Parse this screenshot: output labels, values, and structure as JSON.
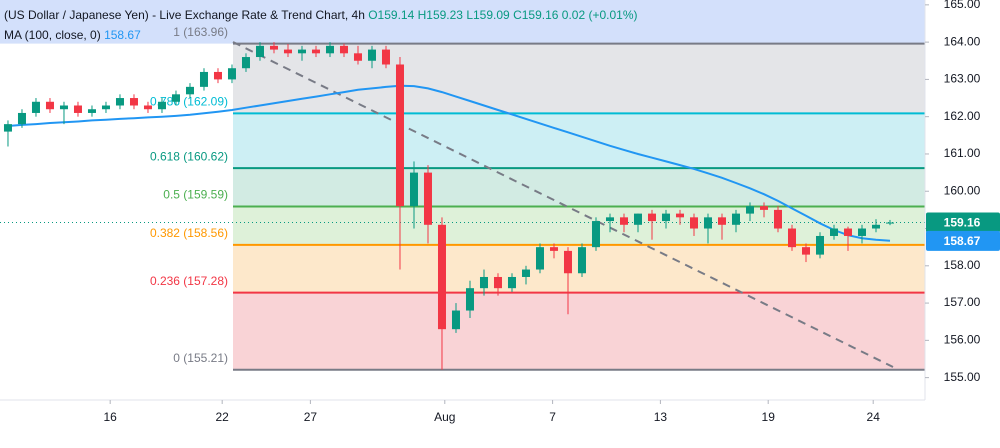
{
  "chart_data": {
    "type": "candlestick",
    "title": "(US Dollar / Japanese Yen) - Live Exchange Rate & Trend Chart, 4h",
    "ohlc_labels": [
      "O159.14",
      "H159.23",
      "L159.09",
      "C159.16"
    ],
    "change": "0.02 (+0.01%)",
    "up_color": "#089981",
    "down_color": "#f23645",
    "x": [
      0,
      1,
      2,
      3,
      4,
      5,
      6,
      7,
      8,
      9,
      10,
      11,
      12,
      13,
      14,
      15,
      16,
      17,
      18,
      19,
      20,
      21,
      22,
      23,
      24,
      25,
      26,
      27,
      28,
      29,
      30,
      31,
      32,
      33,
      34,
      35,
      36,
      37,
      38,
      39,
      40,
      41,
      42,
      43,
      44,
      45,
      46,
      47,
      48,
      49,
      50,
      51,
      52,
      53,
      54,
      55,
      56,
      57,
      58,
      59,
      60,
      61,
      62,
      63
    ],
    "open": [
      161.6,
      161.8,
      162.1,
      162.4,
      162.2,
      162.3,
      162.1,
      162.2,
      162.3,
      162.5,
      162.3,
      162.2,
      162.4,
      162.6,
      162.8,
      163.2,
      163.0,
      163.3,
      163.6,
      163.9,
      163.8,
      163.7,
      163.8,
      163.7,
      163.9,
      163.7,
      163.5,
      163.8,
      163.4,
      159.6,
      160.5,
      159.1,
      156.3,
      156.8,
      157.4,
      157.7,
      157.4,
      157.7,
      157.9,
      158.5,
      158.4,
      157.8,
      158.5,
      159.2,
      159.3,
      159.1,
      159.4,
      159.2,
      159.4,
      159.3,
      159.0,
      159.3,
      159.1,
      159.4,
      159.6,
      159.5,
      159.0,
      158.5,
      158.3,
      158.8,
      159.0,
      158.8,
      159.0,
      159.14
    ],
    "high": [
      161.9,
      162.2,
      162.5,
      162.5,
      162.4,
      162.4,
      162.3,
      162.4,
      162.6,
      162.6,
      162.4,
      162.5,
      162.7,
      162.9,
      163.3,
      163.3,
      163.4,
      163.7,
      164.0,
      164.0,
      163.95,
      163.9,
      163.9,
      164.0,
      163.96,
      163.9,
      163.9,
      163.9,
      163.6,
      160.8,
      160.7,
      159.3,
      157.0,
      157.6,
      157.9,
      157.8,
      157.8,
      158.0,
      158.6,
      158.6,
      158.5,
      158.6,
      159.3,
      159.4,
      159.4,
      159.4,
      159.5,
      159.5,
      159.5,
      159.4,
      159.4,
      159.4,
      159.5,
      159.7,
      159.7,
      159.6,
      159.1,
      158.6,
      158.9,
      159.1,
      159.05,
      159.1,
      159.25,
      159.23
    ],
    "low": [
      161.2,
      161.7,
      162.0,
      162.1,
      161.8,
      162.0,
      162.0,
      162.1,
      162.2,
      162.2,
      162.1,
      162.1,
      162.3,
      162.5,
      162.7,
      162.9,
      162.9,
      163.2,
      163.5,
      163.7,
      163.6,
      163.5,
      163.6,
      163.6,
      163.6,
      163.4,
      163.3,
      163.3,
      157.9,
      159.0,
      158.6,
      155.21,
      156.2,
      156.6,
      157.2,
      157.2,
      157.3,
      157.5,
      157.8,
      158.2,
      156.7,
      157.7,
      158.4,
      158.9,
      158.9,
      158.9,
      158.7,
      159.0,
      159.1,
      158.8,
      158.6,
      158.7,
      158.9,
      159.2,
      159.3,
      158.9,
      158.4,
      158.1,
      158.2,
      158.7,
      158.4,
      158.6,
      158.9,
      159.09
    ],
    "close": [
      161.8,
      162.1,
      162.4,
      162.2,
      162.3,
      162.1,
      162.2,
      162.3,
      162.5,
      162.3,
      162.2,
      162.4,
      162.6,
      162.8,
      163.2,
      163.0,
      163.3,
      163.6,
      163.9,
      163.8,
      163.7,
      163.8,
      163.7,
      163.9,
      163.7,
      163.5,
      163.8,
      163.4,
      159.6,
      160.5,
      159.1,
      156.3,
      156.8,
      157.4,
      157.7,
      157.4,
      157.7,
      157.9,
      158.5,
      158.4,
      157.8,
      158.5,
      159.2,
      159.3,
      159.1,
      159.4,
      159.2,
      159.4,
      159.3,
      159.0,
      159.3,
      159.1,
      159.4,
      159.6,
      159.5,
      159.0,
      158.5,
      158.3,
      158.8,
      159.0,
      158.8,
      159.0,
      159.1,
      159.16
    ],
    "ma": {
      "name": "MA (100, close, 0)",
      "color": "#2196f3",
      "values": [
        161.75,
        161.78,
        161.8,
        161.83,
        161.85,
        161.87,
        161.9,
        161.92,
        161.94,
        161.96,
        161.98,
        162.0,
        162.02,
        162.05,
        162.09,
        162.13,
        162.18,
        162.24,
        162.3,
        162.36,
        162.42,
        162.48,
        162.54,
        162.6,
        162.66,
        162.72,
        162.76,
        162.8,
        162.83,
        162.82,
        162.76,
        162.66,
        162.54,
        162.42,
        162.3,
        162.18,
        162.06,
        161.94,
        161.82,
        161.7,
        161.58,
        161.46,
        161.34,
        161.22,
        161.11,
        161.0,
        160.9,
        160.8,
        160.7,
        160.6,
        160.48,
        160.36,
        160.22,
        160.08,
        159.92,
        159.74,
        159.54,
        159.34,
        159.14,
        158.96,
        158.82,
        158.74,
        158.7,
        158.67
      ]
    },
    "fib": {
      "top_fill": "#d3e0fb",
      "levels": [
        {
          "label": "1 (163.96)",
          "price": 163.96,
          "color": "#787b86",
          "fill": "#e4e5e8"
        },
        {
          "label": "0.786 (162.09)",
          "price": 162.09,
          "color": "#00bcd4",
          "fill": "#cdeff4"
        },
        {
          "label": "0.618 (160.62)",
          "price": 160.62,
          "color": "#089981",
          "fill": "#d2ebe3"
        },
        {
          "label": "0.5 (159.59)",
          "price": 159.59,
          "color": "#4caf50",
          "fill": "#def1d9"
        },
        {
          "label": "0.382 (158.56)",
          "price": 158.56,
          "color": "#ff9800",
          "fill": "#fde8cb"
        },
        {
          "label": "0.236 (157.28)",
          "price": 157.28,
          "color": "#f23645",
          "fill": "#f9d3d6"
        },
        {
          "label": "0 (155.21)",
          "price": 155.21,
          "color": "#787b86",
          "fill": null
        }
      ]
    },
    "xlim": [
      -0.57,
      65.5
    ],
    "ylim": [
      154.4,
      165.13
    ],
    "xticks": [
      {
        "value": 7.3,
        "label": "16"
      },
      {
        "value": 15.3,
        "label": "22"
      },
      {
        "value": 21.6,
        "label": "27"
      },
      {
        "value": 31.2,
        "label": "Aug"
      },
      {
        "value": 38.9,
        "label": "7"
      },
      {
        "value": 46.6,
        "label": "13"
      },
      {
        "value": 54.3,
        "label": "19"
      },
      {
        "value": 61.8,
        "label": "24"
      }
    ],
    "yticks": [
      {
        "value": 155,
        "label": "155.00"
      },
      {
        "value": 156,
        "label": "156.00"
      },
      {
        "value": 157,
        "label": "157.00"
      },
      {
        "value": 158,
        "label": "158.00"
      },
      {
        "value": 159,
        "label": "159.00"
      },
      {
        "value": 160,
        "label": "160.00"
      },
      {
        "value": 161,
        "label": "161.00"
      },
      {
        "value": 162,
        "label": "162.00"
      },
      {
        "value": 163,
        "label": "163.00"
      },
      {
        "value": 164,
        "label": "164.00"
      },
      {
        "value": 165,
        "label": "165.00"
      }
    ]
  }
}
